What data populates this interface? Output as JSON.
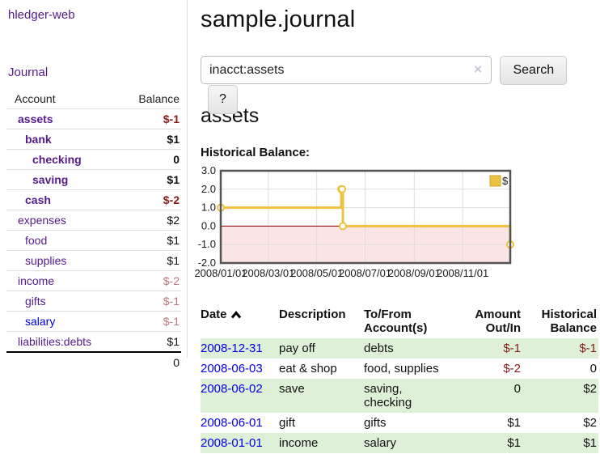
{
  "sidebar": {
    "brand": "hledger-web",
    "nav_journal": "Journal",
    "accounts_table": {
      "headers": [
        "Account",
        "Balance"
      ],
      "rows": [
        {
          "name": "assets",
          "indent": 1,
          "bold": true,
          "link": "visited",
          "balance": "$-1",
          "tone": "neg-strong"
        },
        {
          "name": "bank",
          "indent": 2,
          "bold": true,
          "link": "visited",
          "balance": "$1",
          "tone": "pos"
        },
        {
          "name": "checking",
          "indent": 3,
          "bold": true,
          "link": "visited",
          "balance": "0",
          "tone": "pos"
        },
        {
          "name": "saving",
          "indent": 3,
          "bold": true,
          "link": "visited",
          "balance": "$1",
          "tone": "pos"
        },
        {
          "name": "cash",
          "indent": 2,
          "bold": true,
          "link": "visited",
          "balance": "$-2",
          "tone": "neg-strong"
        },
        {
          "name": "expenses",
          "indent": 1,
          "bold": false,
          "link": "visited",
          "balance": "$2",
          "tone": "pos"
        },
        {
          "name": "food",
          "indent": 2,
          "bold": false,
          "link": "visited",
          "balance": "$1",
          "tone": "pos"
        },
        {
          "name": "supplies",
          "indent": 2,
          "bold": false,
          "link": "visited",
          "balance": "$1",
          "tone": "pos"
        },
        {
          "name": "income",
          "indent": 1,
          "bold": false,
          "link": "visited",
          "balance": "$-2",
          "tone": "neg-soft"
        },
        {
          "name": "gifts",
          "indent": 2,
          "bold": false,
          "link": "visited",
          "balance": "$-1",
          "tone": "neg-soft"
        },
        {
          "name": "salary",
          "indent": 2,
          "bold": false,
          "link": "new",
          "balance": "$-1",
          "tone": "neg-soft"
        },
        {
          "name": "liabilities:debts",
          "indent": 1,
          "bold": false,
          "link": "visited",
          "balance": "$1",
          "tone": "pos"
        }
      ],
      "total": "0"
    }
  },
  "main": {
    "title": "sample.journal",
    "search": {
      "value": "inacct:assets",
      "clear_icon": "×",
      "button_label": "Search",
      "help_label": "?"
    },
    "account_heading": "assets",
    "chart_label": "Historical Balance:"
  },
  "chart_data": {
    "type": "line",
    "mode": "step",
    "title": "Historical Balance",
    "xlabel": "",
    "ylabel": "",
    "legend": {
      "position": "top-right",
      "entries": [
        "$"
      ]
    },
    "grid": true,
    "xlim": [
      "2008-01-01",
      "2008-12-31"
    ],
    "ylim": [
      -2,
      3
    ],
    "x_ticks": [
      "2008/01/01",
      "2008/03/01",
      "2008/05/01",
      "2008/07/01",
      "2008/09/01",
      "2008/11/01"
    ],
    "y_ticks": [
      3.0,
      2.0,
      1.0,
      0.0,
      -1.0,
      -2.0
    ],
    "series": [
      {
        "name": "$",
        "color": "#edc240",
        "points": [
          {
            "date": "2008-01-01",
            "value": 1
          },
          {
            "date": "2008-06-01",
            "value": 2
          },
          {
            "date": "2008-06-02",
            "value": 2
          },
          {
            "date": "2008-06-03",
            "value": 0
          },
          {
            "date": "2008-12-31",
            "value": -1
          }
        ]
      }
    ],
    "negative_region_color": "#fbe4e4",
    "zero_line_color": "#8b0000",
    "grid_color": "#dddddd",
    "border_color": "#545454"
  },
  "register_table": {
    "headers": [
      "Date",
      "Description",
      "To/From Account(s)",
      "Amount Out/In",
      "Historical Balance"
    ],
    "sort_column": "Date",
    "sort_direction": "ascending",
    "rows": [
      {
        "date": "2008-12-31",
        "description": "pay off",
        "accounts": "debts",
        "amount": "$-1",
        "amount_neg": true,
        "balance": "$-1",
        "balance_neg": true
      },
      {
        "date": "2008-06-03",
        "description": "eat & shop",
        "accounts": "food, supplies",
        "amount": "$-2",
        "amount_neg": true,
        "balance": "0",
        "balance_neg": false
      },
      {
        "date": "2008-06-02",
        "description": "save",
        "accounts": "saving, checking",
        "amount": "0",
        "amount_neg": false,
        "balance": "$2",
        "balance_neg": false
      },
      {
        "date": "2008-06-01",
        "description": "gift",
        "accounts": "gifts",
        "amount": "$1",
        "amount_neg": false,
        "balance": "$2",
        "balance_neg": false
      },
      {
        "date": "2008-01-01",
        "description": "income",
        "accounts": "salary",
        "amount": "$1",
        "amount_neg": false,
        "balance": "$1",
        "balance_neg": false
      }
    ]
  }
}
